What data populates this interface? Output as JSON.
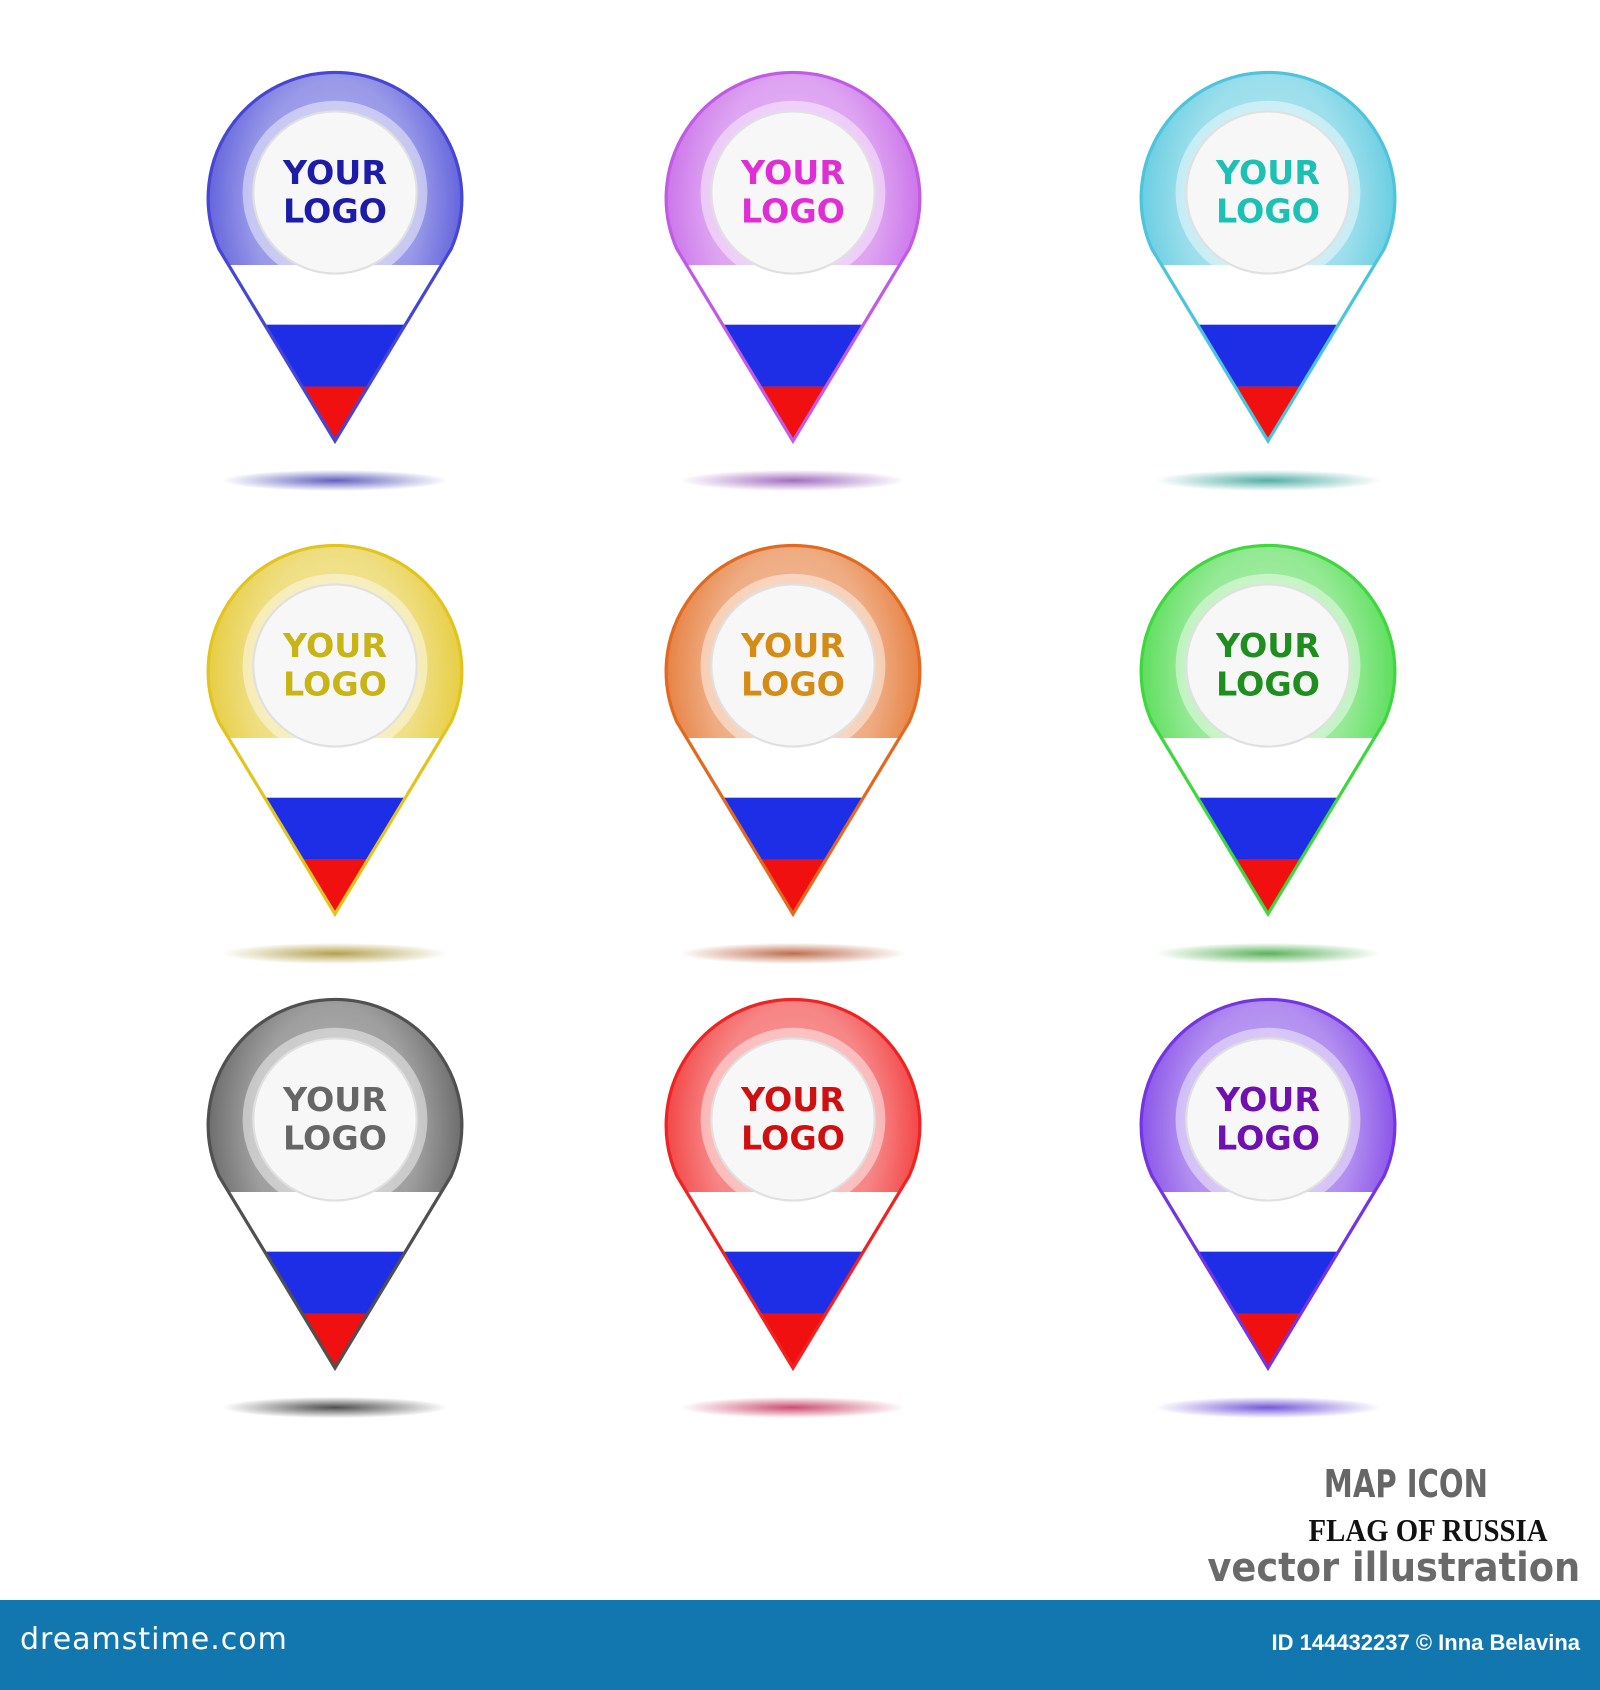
{
  "pins": [
    {
      "ring": "#4646d6",
      "text": "#1c1ca8",
      "shadow": "#3a3ab0",
      "line1": "YOUR",
      "line2": "LOGO"
    },
    {
      "ring": "#c25ae6",
      "text": "#e02ed6",
      "shadow": "#8a4ab0",
      "line1": "YOUR",
      "line2": "LOGO"
    },
    {
      "ring": "#4cc4dc",
      "text": "#1cc0b4",
      "shadow": "#2a9a90",
      "line1": "YOUR",
      "line2": "LOGO"
    },
    {
      "ring": "#e2c41e",
      "text": "#c8b414",
      "shadow": "#a08a20",
      "line1": "YOUR",
      "line2": "LOGO"
    },
    {
      "ring": "#e2691e",
      "text": "#d48c14",
      "shadow": "#b04a20",
      "line1": "YOUR",
      "line2": "LOGO"
    },
    {
      "ring": "#3ed83e",
      "text": "#1e8e1e",
      "shadow": "#30a030",
      "line1": "YOUR",
      "line2": "LOGO"
    },
    {
      "ring": "#505050",
      "text": "#666666",
      "shadow": "#222222",
      "line1": "YOUR",
      "line2": "LOGO"
    },
    {
      "ring": "#f02222",
      "text": "#d01010",
      "shadow": "#c02050",
      "line1": "YOUR",
      "line2": "LOGO"
    },
    {
      "ring": "#7434e4",
      "text": "#7010b0",
      "shadow": "#5030d0",
      "line1": "YOUR",
      "line2": "LOGO"
    }
  ],
  "flag_colors": {
    "white": "#ffffff",
    "blue": "#1e2ee6",
    "red": "#f01010"
  },
  "caption": {
    "line1": "MAP ICON",
    "line2": "FLAG OF RUSSIA",
    "line3": "vector illustration"
  },
  "footer": {
    "brand": "dreamstime.com",
    "credit": "ID 144432237 © Inna Belavina",
    "bg": "#1277ae"
  }
}
